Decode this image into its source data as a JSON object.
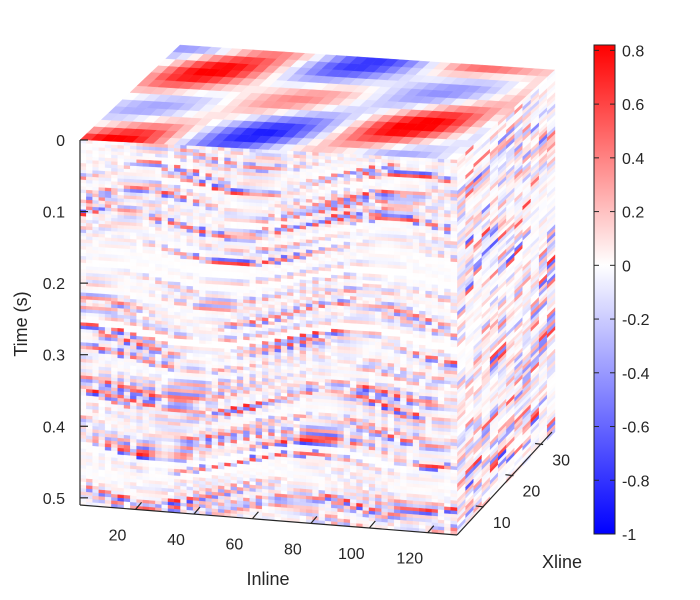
{
  "chart_data": {
    "type": "heatmap",
    "plot_style": "3d-volume-slices",
    "title": "",
    "xlabel": "Inline",
    "ylabel": "Xline",
    "zlabel": "Time (s)",
    "x_ticks": [
      "20",
      "40",
      "60",
      "80",
      "100",
      "120"
    ],
    "x_tick_values": [
      20,
      40,
      60,
      80,
      100,
      120
    ],
    "xlim": [
      1,
      130
    ],
    "y_ticks": [
      "10",
      "20",
      "30"
    ],
    "y_tick_values": [
      10,
      20,
      30
    ],
    "ylim": [
      1,
      34
    ],
    "z_ticks": [
      "0",
      "0.1",
      "0.2",
      "0.3",
      "0.4",
      "0.5"
    ],
    "z_tick_values": [
      0,
      0.1,
      0.2,
      0.3,
      0.4,
      0.5
    ],
    "zlim": [
      0,
      0.51
    ],
    "z_reversed": true,
    "colormap": "blue-white-red",
    "colormap_low": "#0000ff",
    "colormap_mid": "#ffffff",
    "colormap_high": "#ff0000",
    "colorbar_ticks": [
      "0.8",
      "0.6",
      "0.4",
      "0.2",
      "0",
      "-0.2",
      "-0.4",
      "-0.6",
      "-0.8",
      "-1"
    ],
    "colorbar_tick_values": [
      0.8,
      0.6,
      0.4,
      0.2,
      0,
      -0.2,
      -0.4,
      -0.6,
      -0.8,
      -1
    ],
    "clim": [
      -1,
      0.82
    ],
    "grid": false
  }
}
